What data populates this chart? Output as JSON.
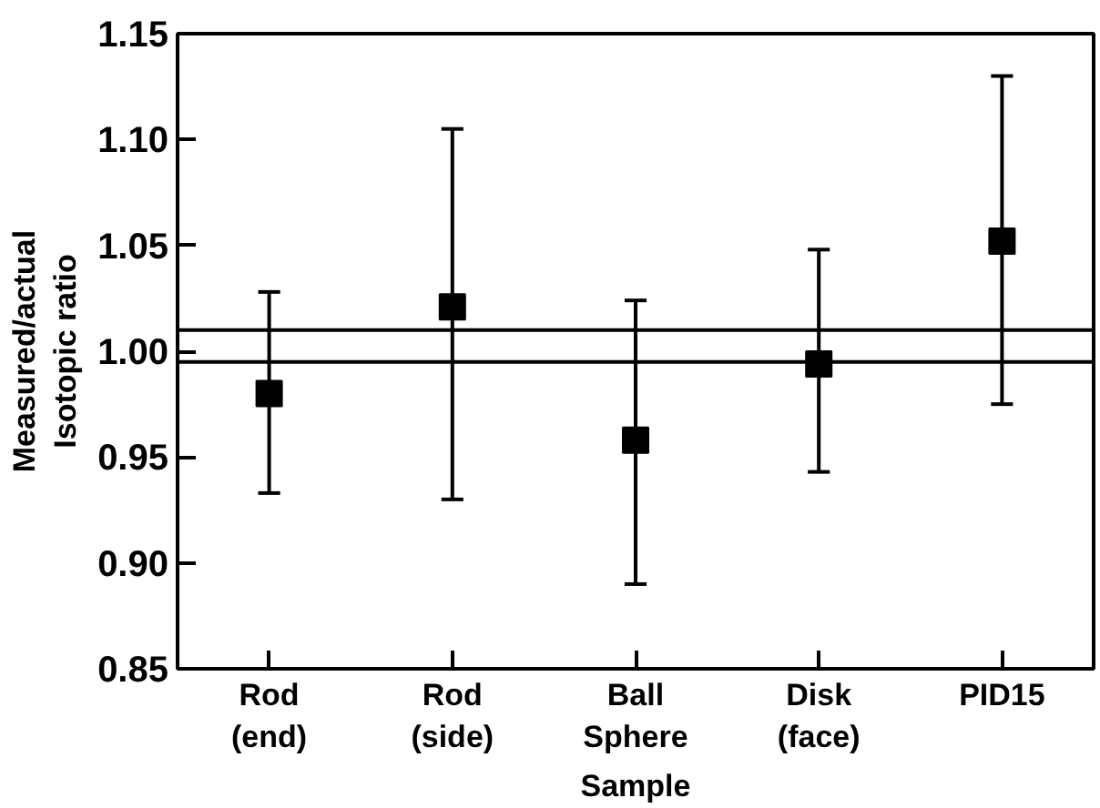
{
  "chart_data": {
    "type": "scatter",
    "xlabel": "Sample",
    "ylabel": "Measured/actual\nIsotopic ratio",
    "categories": [
      "Rod\n(end)",
      "Rod\n(side)",
      "Ball\nSphere",
      "Disk\n(face)",
      "PID15"
    ],
    "series": [
      {
        "color": "#000000",
        "values": [
          0.98,
          1.021,
          0.958,
          0.994,
          1.052
        ],
        "errors": [
          [
            0.933,
            1.028
          ],
          [
            0.93,
            1.105
          ],
          [
            0.89,
            1.024
          ],
          [
            0.943,
            1.048
          ],
          [
            0.975,
            1.13
          ]
        ]
      }
    ],
    "ylim": [
      0.85,
      1.15
    ],
    "yticks": [
      0.85,
      {
        "value": 0.9,
        "label": "0.90"
      },
      0.95,
      {
        "value": 1.0,
        "label": "1.00"
      },
      1.05,
      {
        "value": 1.1,
        "label": "1.10"
      },
      1.15
    ],
    "ref_lines": [
      {
        "axis": "y",
        "value": 1.01,
        "color": "#000000"
      },
      {
        "axis": "y",
        "value": 0.995,
        "color": "#000000"
      }
    ],
    "marker": "square",
    "grid": false
  }
}
